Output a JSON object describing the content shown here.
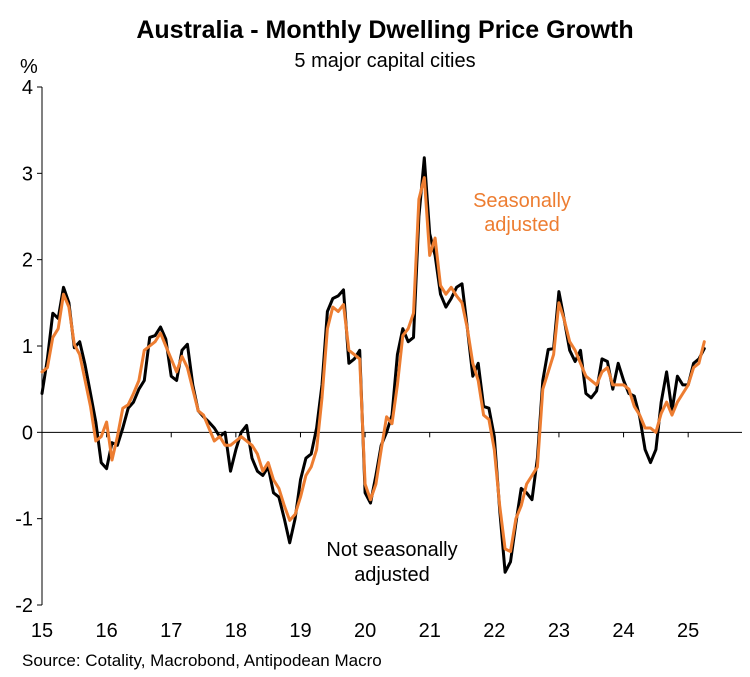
{
  "title": "Australia - Monthly Dwelling Price Growth",
  "subtitle": "5 major capital cities",
  "source": "Source: Cotality, Macrobond, Antipodean Macro",
  "chart_data": {
    "type": "line",
    "yunit": "%",
    "ylim": [
      -2,
      4
    ],
    "yticks": [
      "-2",
      "-1",
      "0",
      "1",
      "2",
      "3",
      "4"
    ],
    "xlim": [
      2015,
      2025.833
    ],
    "xticks": [
      "15",
      "16",
      "17",
      "18",
      "19",
      "20",
      "21",
      "22",
      "23",
      "24",
      "25"
    ],
    "grid": false,
    "colors": {
      "nsa": "#000000",
      "sa": "#ED7D31"
    },
    "annotations": {
      "sa": [
        "Seasonally",
        "adjusted"
      ],
      "nsa": [
        "Not seasonally",
        "adjusted"
      ]
    },
    "series": [
      {
        "key": "nsa",
        "values": [
          0.45,
          0.85,
          1.38,
          1.32,
          1.68,
          1.5,
          0.98,
          1.05,
          0.78,
          0.45,
          0.12,
          -0.35,
          -0.42,
          -0.12,
          -0.15,
          0.05,
          0.28,
          0.35,
          0.5,
          0.6,
          1.1,
          1.12,
          1.22,
          1.08,
          0.65,
          0.6,
          0.95,
          1.02,
          0.55,
          0.25,
          0.18,
          0.12,
          0.05,
          -0.05,
          0.0,
          -0.45,
          -0.2,
          0.0,
          0.08,
          -0.3,
          -0.45,
          -0.5,
          -0.4,
          -0.7,
          -0.75,
          -1.0,
          -1.28,
          -1.0,
          -0.55,
          -0.3,
          -0.25,
          0.05,
          0.55,
          1.4,
          1.55,
          1.58,
          1.65,
          0.8,
          0.85,
          0.95,
          -0.7,
          -0.82,
          -0.5,
          -0.15,
          0.0,
          0.2,
          0.9,
          1.2,
          1.05,
          1.1,
          2.5,
          3.18,
          2.3,
          2.05,
          1.6,
          1.45,
          1.55,
          1.68,
          1.72,
          1.2,
          0.65,
          0.8,
          0.3,
          0.28,
          -0.05,
          -0.9,
          -1.62,
          -1.5,
          -1.05,
          -0.65,
          -0.7,
          -0.78,
          -0.3,
          0.6,
          0.96,
          0.97,
          1.63,
          1.3,
          0.95,
          0.82,
          0.95,
          0.45,
          0.4,
          0.48,
          0.85,
          0.82,
          0.5,
          0.8,
          0.6,
          0.45,
          0.42,
          0.18,
          -0.2,
          -0.35,
          -0.2,
          0.35,
          0.7,
          0.25,
          0.65,
          0.55,
          0.55,
          0.8,
          0.85,
          0.97
        ]
      },
      {
        "key": "sa",
        "values": [
          0.7,
          0.75,
          1.1,
          1.2,
          1.6,
          1.45,
          1.02,
          0.9,
          0.6,
          0.3,
          -0.1,
          -0.05,
          0.12,
          -0.32,
          -0.05,
          0.28,
          0.32,
          0.45,
          0.6,
          0.95,
          1.0,
          1.05,
          1.15,
          1.0,
          0.85,
          0.7,
          0.88,
          0.75,
          0.5,
          0.25,
          0.2,
          0.05,
          -0.1,
          -0.05,
          -0.15,
          -0.15,
          -0.1,
          -0.05,
          -0.1,
          -0.15,
          -0.25,
          -0.45,
          -0.35,
          -0.55,
          -0.65,
          -0.85,
          -1.02,
          -0.95,
          -0.75,
          -0.5,
          -0.4,
          -0.2,
          0.4,
          1.2,
          1.45,
          1.4,
          1.48,
          0.95,
          0.9,
          0.85,
          -0.6,
          -0.78,
          -0.6,
          -0.2,
          0.18,
          0.1,
          0.55,
          1.12,
          1.2,
          1.38,
          2.7,
          2.95,
          2.05,
          2.25,
          1.7,
          1.6,
          1.68,
          1.58,
          1.5,
          1.2,
          0.8,
          0.6,
          0.2,
          0.15,
          -0.2,
          -0.85,
          -1.35,
          -1.38,
          -1.0,
          -0.85,
          -0.6,
          -0.5,
          -0.4,
          0.5,
          0.7,
          0.9,
          1.5,
          1.3,
          1.05,
          0.95,
          0.8,
          0.65,
          0.6,
          0.55,
          0.7,
          0.75,
          0.55,
          0.55,
          0.55,
          0.5,
          0.3,
          0.2,
          0.05,
          0.05,
          0.0,
          0.22,
          0.35,
          0.2,
          0.35,
          0.45,
          0.55,
          0.75,
          0.8,
          1.05
        ]
      }
    ]
  }
}
